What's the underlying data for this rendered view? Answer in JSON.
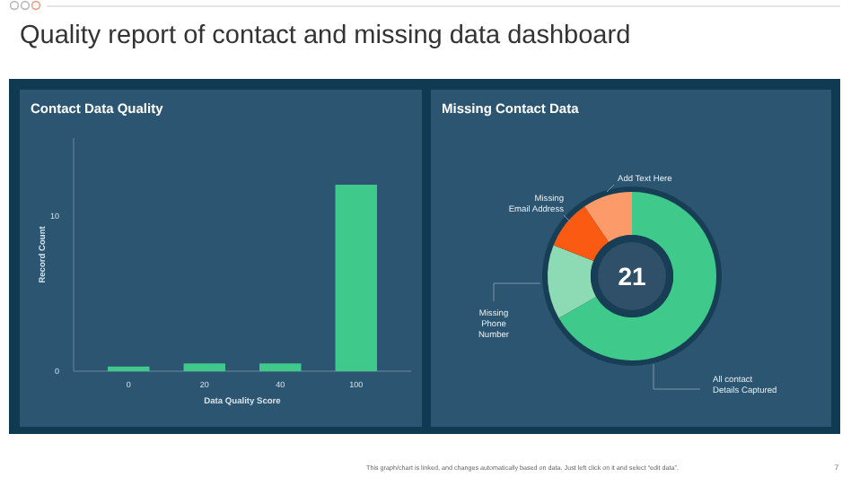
{
  "chart_data": [
    {
      "type": "bar",
      "title": "Contact Data Quality",
      "xlabel": "Data Quality Score",
      "ylabel": "Record Count",
      "categories": [
        "0",
        "20",
        "40",
        "100"
      ],
      "values": [
        0.3,
        0.5,
        0.5,
        12
      ],
      "color": "#3fc98a",
      "ylim": [
        0,
        15
      ],
      "yticks": [
        0,
        10
      ],
      "grid": false,
      "annotations": [
        "Quality report of contact and missing data dashboard",
        "This graph/chart is linked, and changes automatically based on data. Just left click on it and select “edit data”.",
        "7"
      ]
    },
    {
      "type": "donut",
      "title": "Missing Contact Data",
      "categories": [
        "All contact Details Captured",
        "Missing Phone Number",
        "Missing Email Address",
        "Add Text Here"
      ],
      "values": [
        66.7,
        14.3,
        9.5,
        9.5
      ],
      "colors": [
        "#3fc98a",
        "#8ddbb4",
        "#fa5a12",
        "#fd9a6a"
      ],
      "annotations": [
        "21"
      ]
    }
  ]
}
